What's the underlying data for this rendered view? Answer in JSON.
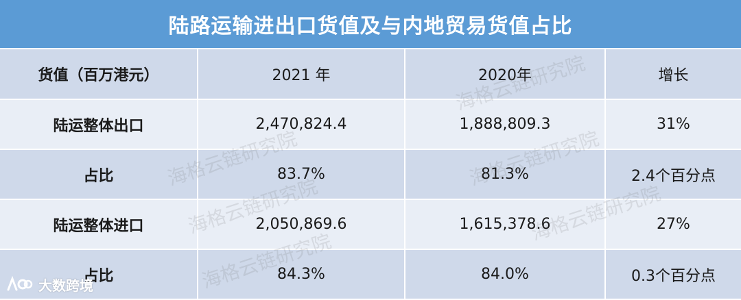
{
  "title": "陆路运输进出口货值及与内地贸易货值占比",
  "table": {
    "header": [
      "货值（百万港元）",
      "2021 年",
      "2020年",
      "增长"
    ],
    "rows": [
      {
        "label": "陆运整体出口",
        "y2021": "2,470,824.4",
        "y2020": "1,888,809.3",
        "growth": "31%"
      },
      {
        "label": "占比",
        "y2021": "83.7%",
        "y2020": "81.3%",
        "growth": "2.4个百分点"
      },
      {
        "label": "陆运整体进口",
        "y2021": "2,050,869.6",
        "y2020": "1,615,378.6",
        "growth": "27%"
      },
      {
        "label": "占比",
        "y2021": "84.3%",
        "y2020": "84.0%",
        "growth": "0.3个百分点"
      }
    ]
  },
  "watermark_text": "海格云链研究院",
  "logo": {
    "text": "大数跨境",
    "icon": "kuajing-logo-icon"
  },
  "colors": {
    "title_bg": "#5b9bd5",
    "row_dark": "#cfd9ea",
    "row_light": "#e9eef6",
    "label_blue": "#2e75c6"
  }
}
